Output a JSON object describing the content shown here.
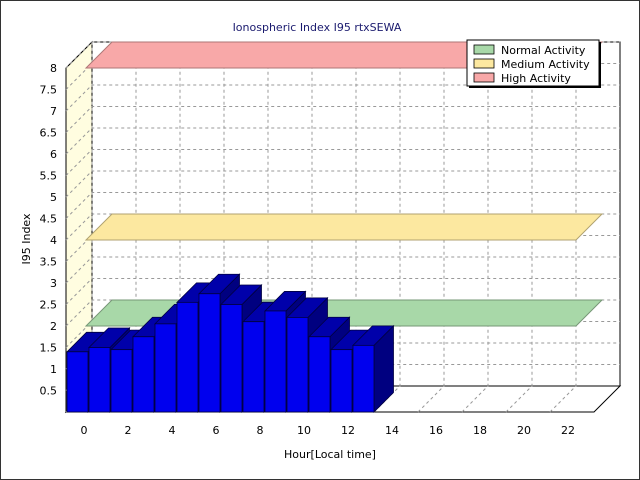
{
  "chart_data": {
    "type": "bar",
    "title": "Ionospheric Index I95 rtxSEWA",
    "xlabel": "Hour[Local time]",
    "ylabel": "I95 Index",
    "x": [
      0,
      1,
      2,
      3,
      4,
      5,
      6,
      7,
      8,
      9,
      10,
      11,
      12,
      13
    ],
    "values": [
      1.4,
      1.5,
      1.45,
      1.75,
      2.05,
      2.55,
      2.75,
      2.5,
      2.1,
      2.35,
      2.2,
      1.75,
      1.45,
      1.55
    ],
    "xlim": [
      0,
      24
    ],
    "ylim": [
      0,
      8
    ],
    "x_ticks": [
      "0",
      "2",
      "4",
      "6",
      "8",
      "10",
      "12",
      "14",
      "16",
      "18",
      "20",
      "22"
    ],
    "y_ticks": [
      "0.5",
      "1",
      "1.5",
      "2",
      "2.5",
      "3",
      "3.5",
      "4",
      "4.5",
      "5",
      "5.5",
      "6",
      "6.5",
      "7",
      "7.5",
      "8"
    ],
    "bar_color": "#0000ee",
    "grid": true,
    "legend_position": "top-right",
    "legend": [
      {
        "label": "Normal Activity",
        "color": "#a8d8a8",
        "level": 2
      },
      {
        "label": "Medium Activity",
        "color": "#fce8a0",
        "level": 4
      },
      {
        "label": "High Activity",
        "color": "#f8a8a8",
        "level": 8
      }
    ]
  }
}
